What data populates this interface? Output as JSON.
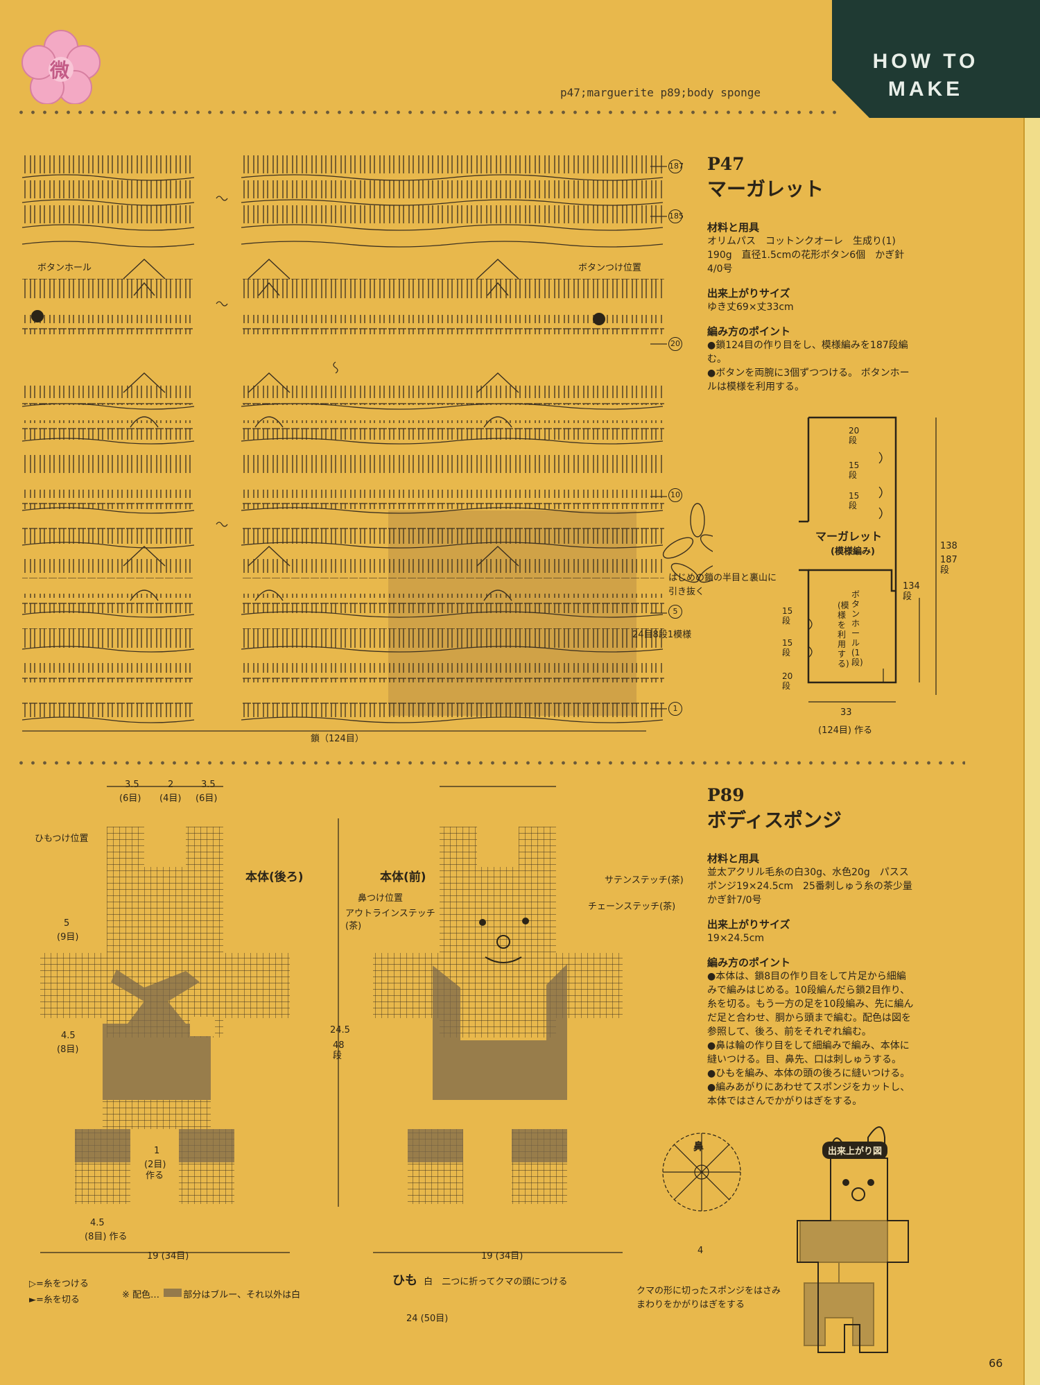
{
  "header": {
    "logo_char": "微",
    "badge_line1": "HOW TO",
    "badge_line2": "MAKE",
    "refs": "p47;marguerite  p89;body sponge"
  },
  "p47": {
    "code": "P47",
    "title": "マーガレット",
    "materials_heading": "材料と用具",
    "materials_lines": [
      "オリムパス　コットンクオーレ　生成り(1)",
      "190g　直径1.5cmの花形ボタン6個　かぎ針",
      "4/0号"
    ],
    "size_heading": "出来上がりサイズ",
    "size_text": "ゆき丈69×丈33cm",
    "points_heading": "編み方のポイント",
    "points_lines": [
      "●鎖124目の作り目をし、模様編みを187段編",
      "む。",
      "●ボタンを両腕に3個ずつつける。 ボタンホー",
      "ルは模様を利用する。"
    ],
    "chart_labels": {
      "buttonhole": "ボタンホール",
      "button_pos": "ボタンつけ位置",
      "row187": "187",
      "row185": "185",
      "row20": "20",
      "row10": "10",
      "row5": "5",
      "row1": "1",
      "motif_note_1": "はじめの鎖の半目と裏山に",
      "motif_note_2": "引き抜く",
      "repeat": "24目8段1模様",
      "base": "鎖（124目）"
    },
    "schematic": {
      "title": "マーガレット",
      "subtitle": "(模様編み)",
      "top_rows": [
        "20段",
        "15段",
        "15段"
      ],
      "bottom_rows": [
        "15段",
        "15段",
        "20段"
      ],
      "buttonhole_note": "ボタンホール(1段)",
      "buttonhole_note2": "(模様を利用する)",
      "height_total": "138",
      "height_rows": "187段",
      "inner": "134段",
      "width": "33",
      "width_rows": "(124目) 作る"
    }
  },
  "p89": {
    "code": "P89",
    "title": "ボディスポンジ",
    "materials_heading": "材料と用具",
    "materials_lines": [
      "並太アクリル毛糸の白30g、水色20g　パスス",
      "ポンジ19×24.5cm　25番刺しゅう糸の茶少量",
      "かぎ針7/0号"
    ],
    "size_heading": "出来上がりサイズ",
    "size_text": "19×24.5cm",
    "points_heading": "編み方のポイント",
    "points_lines": [
      "●本体は、鎖8目の作り目をして片足から細編",
      "みで編みはじめる。10段編んだら鎖2目作り、",
      "糸を切る。もう一方の足を10段編み、先に編ん",
      "だ足と合わせ、胴から頭まで編む。配色は図を",
      "参照して、後ろ、前をそれぞれ編む。",
      "●鼻は輪の作り目をして細編みで編み、本体に",
      "縫いつける。目、鼻先、口は刺しゅうする。",
      "●ひもを編み、本体の頭の後ろに縫いつける。",
      "●編みあがりにあわせてスポンジをカットし、",
      "本体ではさんでかがりはぎをする。"
    ],
    "back": {
      "title": "本体(後ろ)",
      "cord_pos": "ひもつけ位置",
      "top_dims": [
        "3.5",
        "(6目)",
        "2",
        "(4目)",
        "3.5",
        "(6目)"
      ],
      "arm_dim": "5",
      "arm_dim2": "(9目)",
      "hip_dim": "4.5",
      "hip_dim2": "(8目)",
      "leg_dim": "4.5",
      "leg_dim2": "(8目) 作る",
      "gap_dim": "1",
      "gap_dim2": "(2目)",
      "gap_dim3": "作る",
      "width": "19 (34目)"
    },
    "front": {
      "title": "本体(前)",
      "nose_pos": "鼻つけ位置",
      "outline": "アウトラインステッチ",
      "outline2": "(茶)",
      "satin": "サテンステッチ(茶)",
      "chain": "チェーンステッチ(茶)",
      "width": "19 (34目)"
    },
    "height": "24.5",
    "height_rows": "48段",
    "nose": {
      "title": "鼻",
      "width": "4"
    },
    "cord": {
      "title": "ひも",
      "color": "白",
      "note": "二つに折ってクマの頭につける",
      "width": "24 (50目)"
    },
    "finished": {
      "title": "出来上がり図",
      "note_1": "クマの形に切ったスポンジをはさみ",
      "note_2": "まわりをかがりはぎをする"
    },
    "legend": {
      "attach": "=糸をつける",
      "cut": "=糸を切る",
      "color_note": "※ 配色… 　　 部分はブルー、それ以外は白"
    }
  },
  "page_number": "66"
}
